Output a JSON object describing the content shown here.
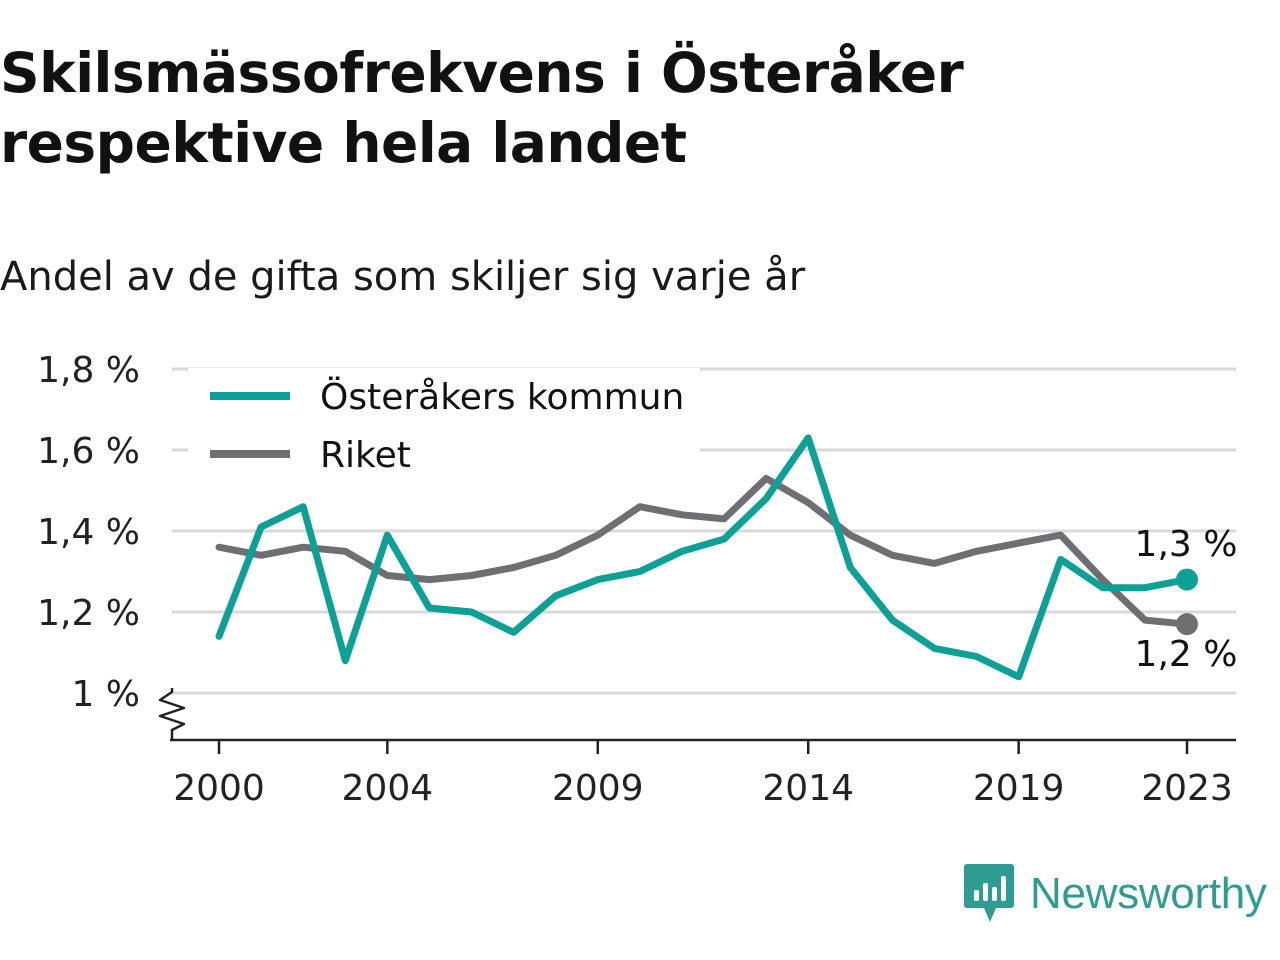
{
  "title": "Skilsmässofrekvens i Österåker respektive hela landet",
  "subtitle": "Andel av de gifta som skiljer sig varje år",
  "brand": "Newsworthy",
  "colors": {
    "accent": "#0da096",
    "national": "#6e6e73",
    "grid": "#d9d9d9",
    "brand": "#2f9c93"
  },
  "chart_data": {
    "type": "line",
    "title": "Skilsmässofrekvens i Österåker respektive hela landet",
    "subtitle": "Andel av de gifta som skiljer sig varje år",
    "xlabel": "",
    "ylabel": "",
    "x": [
      2000,
      2001,
      2002,
      2003,
      2004,
      2005,
      2006,
      2007,
      2008,
      2009,
      2010,
      2011,
      2012,
      2013,
      2014,
      2015,
      2016,
      2017,
      2018,
      2019,
      2020,
      2021,
      2022,
      2023
    ],
    "xticks": [
      2000,
      2004,
      2009,
      2014,
      2019,
      2023
    ],
    "xtick_labels": [
      "2000",
      "2004",
      "2009",
      "2014",
      "2019",
      "2023"
    ],
    "ylim": [
      0.9,
      1.8
    ],
    "yticks": [
      1.0,
      1.2,
      1.4,
      1.6,
      1.8
    ],
    "ytick_labels": [
      "1 %",
      "1,2 %",
      "1,4 %",
      "1,6 %",
      "1,8 %"
    ],
    "axis_break": true,
    "grid": true,
    "legend_position": "top-left",
    "series": [
      {
        "name": "Österåkers kommun",
        "color": "#0da096",
        "values": [
          1.14,
          1.41,
          1.46,
          1.08,
          1.39,
          1.21,
          1.2,
          1.15,
          1.24,
          1.28,
          1.3,
          1.35,
          1.38,
          1.48,
          1.63,
          1.31,
          1.18,
          1.11,
          1.09,
          1.04,
          1.33,
          1.26,
          1.26,
          1.28
        ],
        "end_label": "1,3 %"
      },
      {
        "name": "Riket",
        "color": "#6e6e73",
        "values": [
          1.36,
          1.34,
          1.36,
          1.35,
          1.29,
          1.28,
          1.29,
          1.31,
          1.34,
          1.39,
          1.46,
          1.44,
          1.43,
          1.53,
          1.47,
          1.39,
          1.34,
          1.32,
          1.35,
          1.37,
          1.39,
          1.28,
          1.18,
          1.17
        ],
        "end_label": "1,2 %"
      }
    ]
  }
}
